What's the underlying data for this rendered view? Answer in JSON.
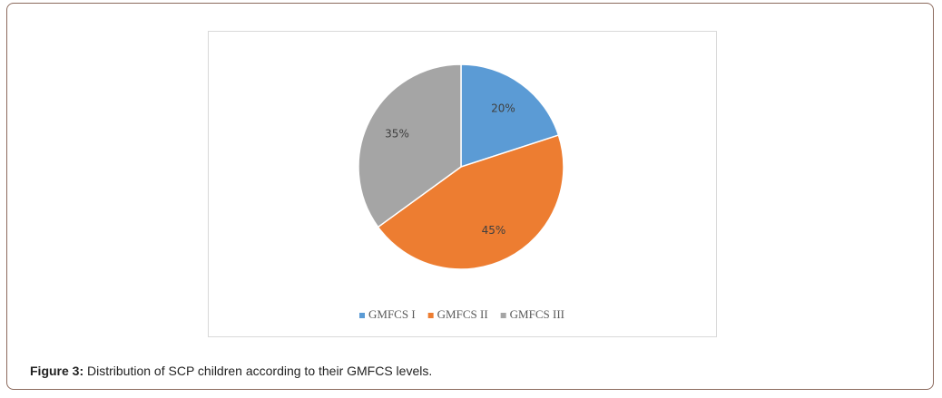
{
  "chart_data": {
    "type": "pie",
    "categories": [
      "GMFCS I",
      "GMFCS II",
      "GMFCS III"
    ],
    "values": [
      20,
      45,
      35
    ],
    "value_labels": [
      "20%",
      "45%",
      "35%"
    ],
    "colors": [
      "#5b9bd5",
      "#ed7d31",
      "#a5a5a5"
    ],
    "legend": "bottom"
  },
  "caption": {
    "label": "Figure 3:",
    "text": "Distribution of SCP children according to their GMFCS levels."
  }
}
